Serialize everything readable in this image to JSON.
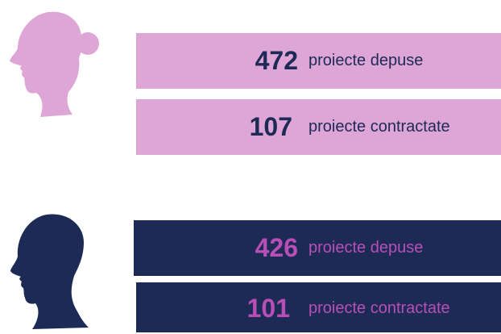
{
  "groups": [
    {
      "rows": [
        {
          "number": 472,
          "label": "proiecte depuse"
        },
        {
          "number": 107,
          "label": "proiecte contractate"
        }
      ]
    },
    {
      "rows": [
        {
          "number": 426,
          "label": "proiecte depuse"
        },
        {
          "number": 101,
          "label": "proiecte contractate"
        }
      ]
    }
  ]
}
